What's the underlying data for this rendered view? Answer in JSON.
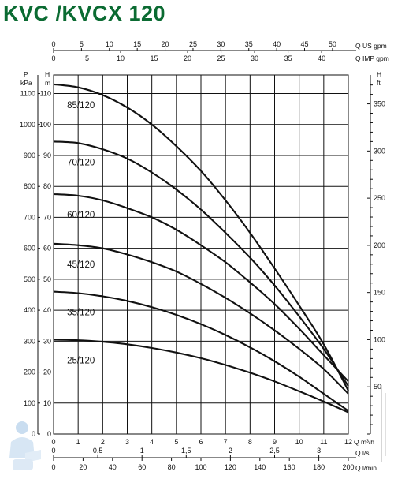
{
  "title": "KVC /KVCX 120",
  "chart_data": {
    "type": "line",
    "title": "KVC /KVCX 120",
    "x_axes": {
      "q_m3h": {
        "label": "Q m³/h",
        "ticks": [
          0,
          1,
          2,
          3,
          4,
          5,
          6,
          7,
          8,
          9,
          10,
          11,
          12
        ],
        "range": [
          0,
          12
        ]
      },
      "q_ls": {
        "label": "Q l/s",
        "ticks": [
          0,
          0.5,
          1,
          1.5,
          2,
          2.5,
          3
        ],
        "tick_labels": [
          "0",
          "0,5",
          "1",
          "1,5",
          "2",
          "2,5",
          "3"
        ]
      },
      "q_lmin": {
        "label": "Q l/min",
        "ticks": [
          0,
          20,
          40,
          60,
          80,
          100,
          120,
          140,
          160,
          180,
          200
        ]
      },
      "q_usgpm": {
        "label": "Q US gpm",
        "ticks": [
          0,
          5,
          10,
          15,
          20,
          25,
          30,
          35,
          40,
          45,
          50
        ]
      },
      "q_impgpm": {
        "label": "Q IMP gpm",
        "ticks": [
          0,
          5,
          10,
          15,
          20,
          25,
          30,
          35,
          40
        ]
      }
    },
    "y_axes": {
      "p_kpa": {
        "label": "P kPa",
        "ticks": [
          0,
          100,
          200,
          300,
          400,
          500,
          600,
          700,
          800,
          900,
          1000,
          1100
        ]
      },
      "h_m": {
        "label": "H m",
        "ticks": [
          0,
          10,
          20,
          30,
          40,
          50,
          60,
          70,
          80,
          90,
          100,
          110
        ],
        "range": [
          0,
          116
        ]
      },
      "h_ft": {
        "label": "H ft",
        "ticks": [
          0,
          50,
          100,
          150,
          200,
          250,
          300,
          350
        ],
        "tick_labels": [
          "",
          "50",
          "100",
          "150",
          "200",
          "250",
          "300",
          "350"
        ]
      }
    },
    "grid": true,
    "series": [
      {
        "name": "85/120",
        "x": [
          0,
          1,
          2,
          3,
          4,
          5,
          6,
          7,
          8,
          9,
          10,
          11,
          12
        ],
        "y": [
          113,
          112,
          109.5,
          105.5,
          100,
          93,
          85,
          75.5,
          65,
          53.5,
          41.5,
          29,
          14
        ]
      },
      {
        "name": "70/120",
        "x": [
          0,
          1,
          2,
          3,
          4,
          5,
          6,
          7,
          8,
          9,
          10,
          11,
          12
        ],
        "y": [
          94.5,
          94,
          92,
          89,
          84.5,
          79,
          72.5,
          65,
          57,
          48,
          38,
          27.5,
          15.5
        ]
      },
      {
        "name": "60/120",
        "x": [
          0,
          1,
          2,
          3,
          4,
          5,
          6,
          7,
          8,
          9,
          10,
          11,
          12
        ],
        "y": [
          77.5,
          77,
          75.5,
          73,
          70,
          66,
          61,
          55.5,
          49,
          42,
          34,
          25.5,
          17
        ]
      },
      {
        "name": "45/120",
        "x": [
          0,
          1,
          2,
          3,
          4,
          5,
          6,
          7,
          8,
          9,
          10,
          11,
          12
        ],
        "y": [
          61.5,
          61,
          60,
          58,
          55.5,
          52.5,
          48.5,
          44,
          39,
          33.5,
          27.5,
          21,
          13
        ]
      },
      {
        "name": "35/120",
        "x": [
          0,
          1,
          2,
          3,
          4,
          5,
          6,
          7,
          8,
          9,
          10,
          11,
          12
        ],
        "y": [
          46,
          45.5,
          44.5,
          43,
          41,
          38.5,
          35.5,
          32,
          28,
          23.5,
          18.5,
          13,
          7.5
        ]
      },
      {
        "name": "25/120",
        "x": [
          0,
          1,
          2,
          3,
          4,
          5,
          6,
          7,
          8,
          9,
          10,
          11,
          12
        ],
        "y": [
          30.5,
          30.3,
          29.8,
          29,
          27.8,
          26.3,
          24.5,
          22.3,
          19.8,
          17,
          13.8,
          10.5,
          7
        ]
      }
    ]
  },
  "icon_names": {
    "watermark": "plumber-watermark-icon",
    "side_text": "vertical-watermark-text"
  }
}
